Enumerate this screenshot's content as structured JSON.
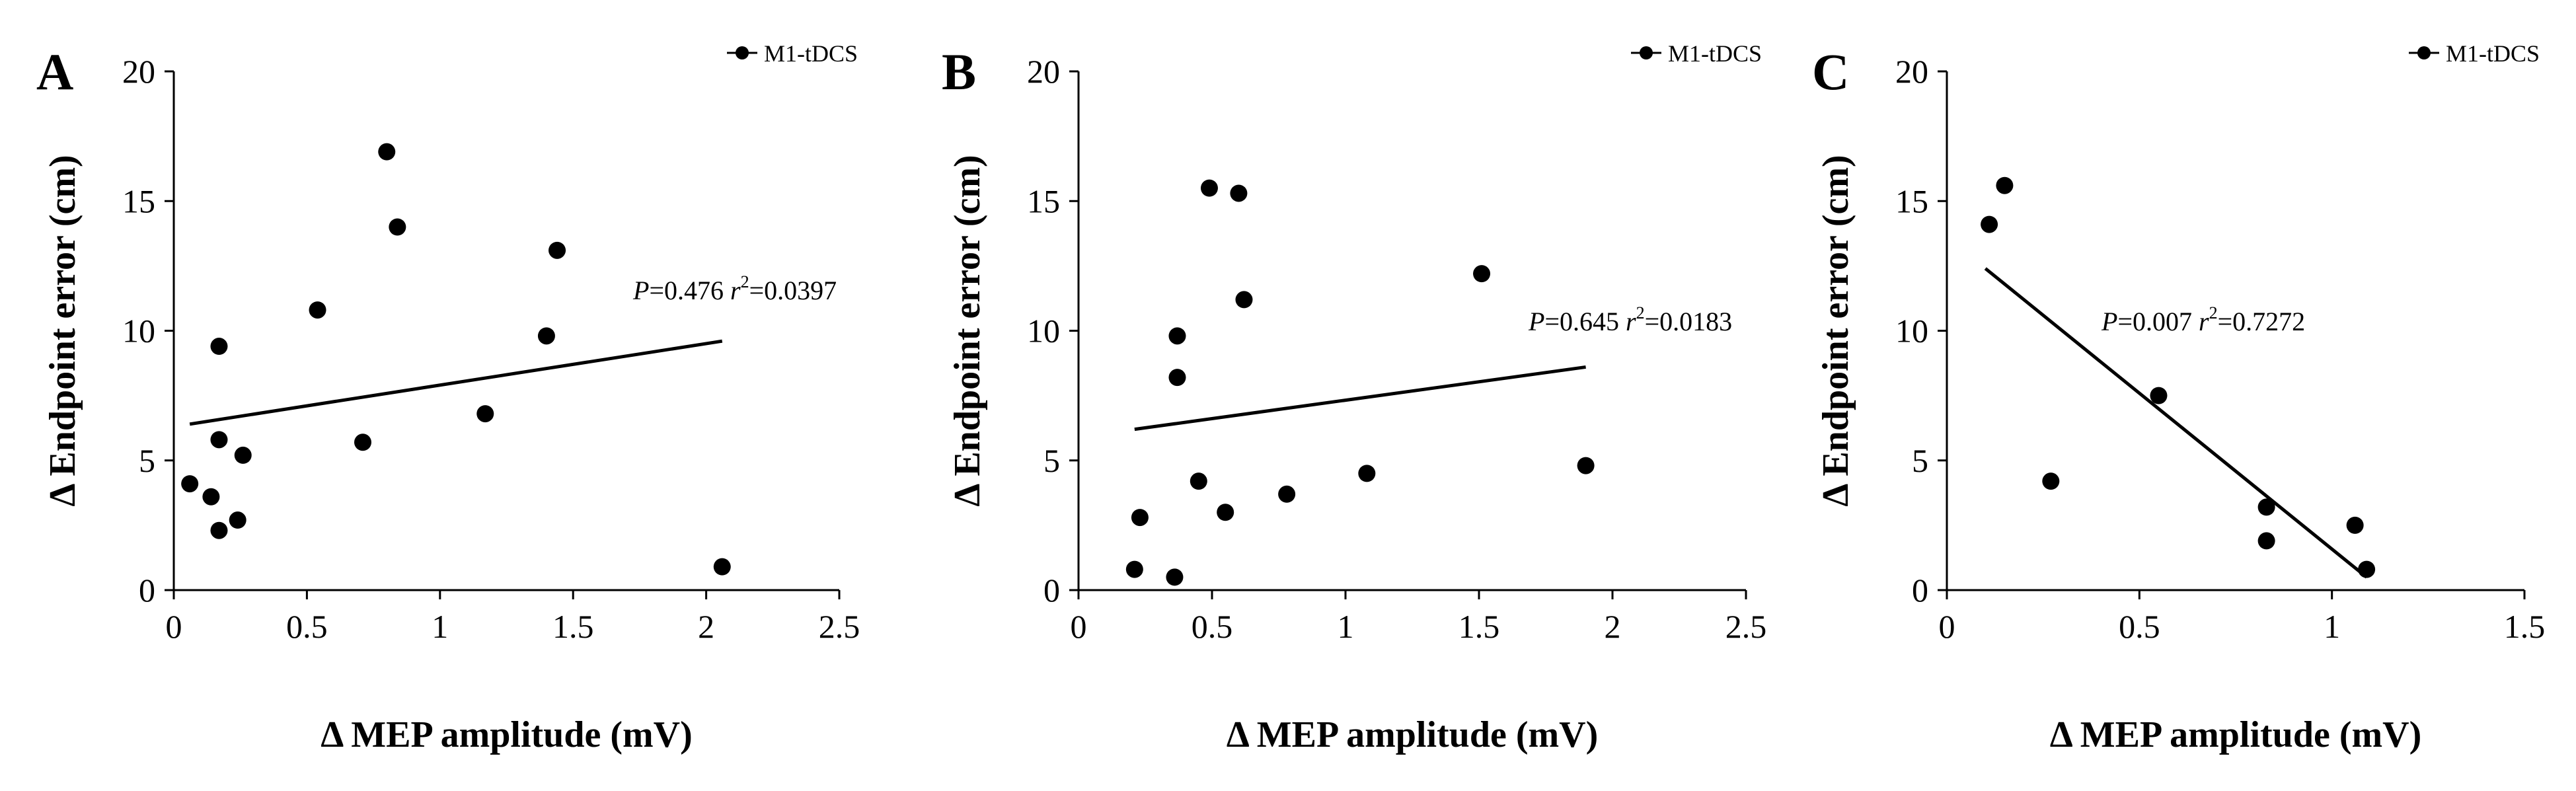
{
  "figure": {
    "colors": {
      "foreground": "#000000",
      "background": "#ffffff"
    }
  },
  "chart_data": [
    {
      "panel_label": "A",
      "type": "scatter",
      "series_name": "M1-tDCS",
      "xlabel": "Δ MEP amplitude (mV)",
      "ylabel": "Δ Endpoint error (cm)",
      "xlim": [
        0,
        2.5
      ],
      "ylim": [
        0,
        20
      ],
      "xticks": [
        0,
        0.5,
        1,
        1.5,
        2,
        2.5
      ],
      "xtick_labels": [
        "0",
        "0.5",
        "1",
        "1.5",
        "2",
        "2.5"
      ],
      "yticks": [
        0,
        5,
        10,
        15,
        20
      ],
      "ytick_labels": [
        "0",
        "5",
        "10",
        "15",
        "20"
      ],
      "points": [
        {
          "x": 0.06,
          "y": 4.1
        },
        {
          "x": 0.14,
          "y": 3.6
        },
        {
          "x": 0.17,
          "y": 2.3
        },
        {
          "x": 0.17,
          "y": 5.8
        },
        {
          "x": 0.17,
          "y": 9.4
        },
        {
          "x": 0.24,
          "y": 2.7
        },
        {
          "x": 0.26,
          "y": 5.2
        },
        {
          "x": 0.54,
          "y": 10.8
        },
        {
          "x": 0.71,
          "y": 5.7
        },
        {
          "x": 0.8,
          "y": 16.9
        },
        {
          "x": 0.84,
          "y": 14.0
        },
        {
          "x": 1.17,
          "y": 6.8
        },
        {
          "x": 1.4,
          "y": 9.8
        },
        {
          "x": 1.44,
          "y": 13.1
        },
        {
          "x": 2.06,
          "y": 0.9
        }
      ],
      "trendline": {
        "x": [
          0.06,
          2.06
        ],
        "y": [
          6.4,
          9.6
        ]
      },
      "stat_p": "0.476",
      "stat_r2": "0.0397"
    },
    {
      "panel_label": "B",
      "type": "scatter",
      "series_name": "M1-tDCS",
      "xlabel": "Δ MEP amplitude (mV)",
      "ylabel": "Δ Endpoint error (cm)",
      "xlim": [
        0,
        2.5
      ],
      "ylim": [
        0,
        20
      ],
      "xticks": [
        0,
        0.5,
        1,
        1.5,
        2,
        2.5
      ],
      "xtick_labels": [
        "0",
        "0.5",
        "1",
        "1.5",
        "2",
        "2.5"
      ],
      "yticks": [
        0,
        5,
        10,
        15,
        20
      ],
      "ytick_labels": [
        "0",
        "5",
        "10",
        "15",
        "20"
      ],
      "points": [
        {
          "x": 0.21,
          "y": 0.8
        },
        {
          "x": 0.23,
          "y": 2.8
        },
        {
          "x": 0.36,
          "y": 0.5
        },
        {
          "x": 0.37,
          "y": 8.2
        },
        {
          "x": 0.37,
          "y": 9.8
        },
        {
          "x": 0.45,
          "y": 4.2
        },
        {
          "x": 0.49,
          "y": 15.5
        },
        {
          "x": 0.55,
          "y": 3.0
        },
        {
          "x": 0.6,
          "y": 15.3
        },
        {
          "x": 0.62,
          "y": 11.2
        },
        {
          "x": 0.78,
          "y": 3.7
        },
        {
          "x": 1.08,
          "y": 4.5
        },
        {
          "x": 1.51,
          "y": 12.2
        },
        {
          "x": 1.9,
          "y": 4.8
        }
      ],
      "trendline": {
        "x": [
          0.21,
          1.9
        ],
        "y": [
          6.2,
          8.6
        ]
      },
      "stat_p": "0.645",
      "stat_r2": "0.0183"
    },
    {
      "panel_label": "C",
      "type": "scatter",
      "series_name": "M1-tDCS",
      "xlabel": "Δ MEP amplitude (mV)",
      "ylabel": "Δ Endpoint error (cm)",
      "xlim": [
        0,
        1.5
      ],
      "ylim": [
        0,
        20
      ],
      "xticks": [
        0,
        0.5,
        1,
        1.5
      ],
      "xtick_labels": [
        "0",
        "0.5",
        "1",
        "1.5"
      ],
      "yticks": [
        0,
        5,
        10,
        15,
        20
      ],
      "ytick_labels": [
        "0",
        "5",
        "10",
        "15",
        "20"
      ],
      "points": [
        {
          "x": 0.11,
          "y": 14.1
        },
        {
          "x": 0.15,
          "y": 15.6
        },
        {
          "x": 0.27,
          "y": 4.2
        },
        {
          "x": 0.55,
          "y": 7.5
        },
        {
          "x": 0.83,
          "y": 3.2
        },
        {
          "x": 0.83,
          "y": 1.9
        },
        {
          "x": 1.06,
          "y": 2.5
        },
        {
          "x": 1.09,
          "y": 0.8
        }
      ],
      "trendline": {
        "x": [
          0.1,
          1.09
        ],
        "y": [
          12.4,
          0.5
        ]
      },
      "stat_p": "0.007",
      "stat_r2": "0.7272"
    }
  ]
}
